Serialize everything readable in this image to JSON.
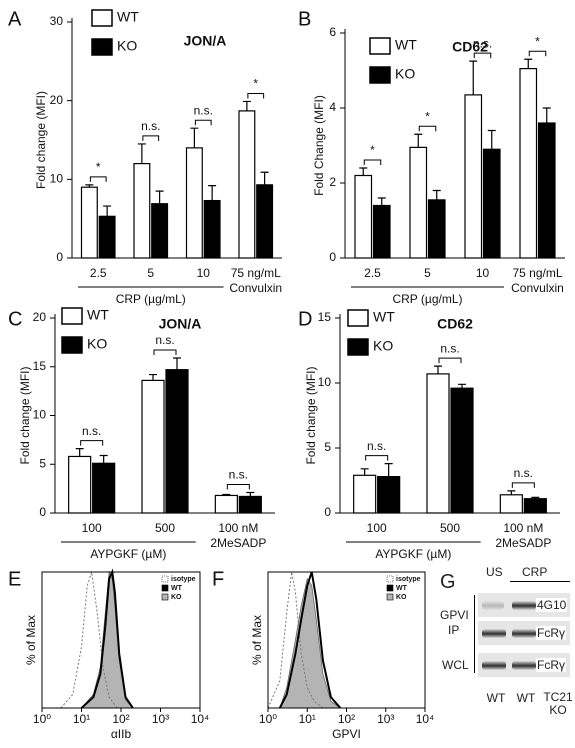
{
  "chart_data": [
    {
      "type": "bar",
      "panel": "A",
      "title": "JON/A",
      "ylabel": "Fold change (MFI)",
      "categories": [
        "2.5",
        "5",
        "10",
        "75 ng/mL"
      ],
      "xlabel": "CRP (µg/mL)",
      "xlabel2": "Convulxin",
      "series": [
        {
          "name": "WT",
          "color": "#ffffff",
          "values": [
            9,
            12,
            14,
            18.7
          ],
          "errors": [
            0.3,
            2.5,
            2.5,
            1.2
          ]
        },
        {
          "name": "KO",
          "color": "#000000",
          "values": [
            5.3,
            6.9,
            7.3,
            9.3
          ],
          "errors": [
            1.3,
            1.6,
            1.9,
            1.6
          ]
        }
      ],
      "annotations": [
        "*",
        "n.s.",
        "n.s.",
        "*"
      ],
      "ylim": [
        0,
        30
      ],
      "yticks": [
        0,
        10,
        20,
        30
      ]
    },
    {
      "type": "bar",
      "panel": "B",
      "title": "CD62",
      "ylabel": "Fold Change (MFI)",
      "categories": [
        "2.5",
        "5",
        "10",
        "75 ng/mL"
      ],
      "xlabel": "CRP (µg/mL)",
      "xlabel2": "Convulxin",
      "series": [
        {
          "name": "WT",
          "color": "#ffffff",
          "values": [
            2.2,
            2.95,
            4.35,
            5.05
          ],
          "errors": [
            0.2,
            0.35,
            0.9,
            0.25
          ]
        },
        {
          "name": "KO",
          "color": "#000000",
          "values": [
            1.4,
            1.55,
            2.9,
            3.6
          ],
          "errors": [
            0.2,
            0.25,
            0.5,
            0.4
          ]
        }
      ],
      "annotations": [
        "*",
        "*",
        "n.s.",
        "*"
      ],
      "ylim": [
        0,
        6
      ],
      "yticks": [
        0,
        2,
        4,
        6
      ]
    },
    {
      "type": "bar",
      "panel": "C",
      "title": "JON/A",
      "ylabel": "Fold change (MFI)",
      "categories": [
        "100",
        "500",
        "100 nM"
      ],
      "xlabel": "AYPGKF (µM)",
      "xlabel2": "2MeSADP",
      "series": [
        {
          "name": "WT",
          "color": "#ffffff",
          "values": [
            5.8,
            13.6,
            1.8
          ],
          "errors": [
            0.8,
            0.6,
            0.1
          ]
        },
        {
          "name": "KO",
          "color": "#000000",
          "values": [
            5.1,
            14.7,
            1.7
          ],
          "errors": [
            0.8,
            1.2,
            0.4
          ]
        }
      ],
      "annotations": [
        "n.s.",
        "n.s.",
        "n.s."
      ],
      "ylim": [
        0,
        20
      ],
      "yticks": [
        0,
        5,
        10,
        15,
        20
      ]
    },
    {
      "type": "bar",
      "panel": "D",
      "title": "CD62",
      "ylabel": "Fold change (MFI)",
      "categories": [
        "100",
        "500",
        "100 nM"
      ],
      "xlabel": "AYPGKF (µM)",
      "xlabel2": "2MeSADP",
      "series": [
        {
          "name": "WT",
          "color": "#ffffff",
          "values": [
            2.9,
            10.7,
            1.4
          ],
          "errors": [
            0.5,
            0.6,
            0.3
          ]
        },
        {
          "name": "KO",
          "color": "#000000",
          "values": [
            2.8,
            9.6,
            1.1
          ],
          "errors": [
            1.0,
            0.3,
            0.1
          ]
        }
      ],
      "annotations": [
        "n.s.",
        "n.s.",
        "n.s."
      ],
      "ylim": [
        0,
        15
      ],
      "yticks": [
        0,
        5,
        10,
        15
      ]
    },
    {
      "type": "histogram-line",
      "panel": "E",
      "ylabel": "% of Max",
      "xlabel": "αIIb",
      "xscale": "log",
      "xlim": [
        1,
        10000
      ],
      "ylim": [
        0,
        100
      ],
      "xticks": [
        {
          "value": 1,
          "label": "10⁰"
        },
        {
          "value": 10,
          "label": "10¹"
        },
        {
          "value": 100,
          "label": "10²"
        },
        {
          "value": 1000,
          "label": "10³"
        },
        {
          "value": 10000,
          "label": "10⁴"
        }
      ],
      "series": [
        {
          "name": "isotype",
          "color": "#777777",
          "dash": true,
          "fill": false,
          "x": [
            3,
            6,
            10,
            14,
            18,
            25,
            35,
            50,
            80
          ],
          "values": [
            0,
            10,
            45,
            90,
            100,
            70,
            30,
            8,
            0
          ]
        },
        {
          "name": "WT",
          "color": "#000000",
          "dash": false,
          "fill": false,
          "x": [
            10,
            20,
            30,
            40,
            50,
            60,
            70,
            90,
            130,
            200
          ],
          "values": [
            0,
            8,
            25,
            60,
            95,
            100,
            85,
            40,
            8,
            0
          ]
        },
        {
          "name": "KO",
          "color": "#b4b4b4",
          "dash": false,
          "fill": true,
          "x": [
            10,
            20,
            30,
            40,
            50,
            60,
            70,
            90,
            130,
            200
          ],
          "values": [
            0,
            10,
            30,
            70,
            100,
            95,
            75,
            35,
            6,
            0
          ]
        }
      ]
    },
    {
      "type": "histogram-line",
      "panel": "F",
      "ylabel": "% of Max",
      "xlabel": "GPVI",
      "xscale": "log",
      "xlim": [
        1,
        10000
      ],
      "ylim": [
        0,
        100
      ],
      "xticks": [
        {
          "value": 1,
          "label": "10⁰"
        },
        {
          "value": 10,
          "label": "10¹"
        },
        {
          "value": 100,
          "label": "10²"
        },
        {
          "value": 1000,
          "label": "10³"
        },
        {
          "value": 10000,
          "label": "10⁴"
        }
      ],
      "series": [
        {
          "name": "isotype",
          "color": "#777777",
          "dash": true,
          "fill": false,
          "x": [
            1,
            2,
            3,
            4,
            5,
            7,
            10,
            15,
            25
          ],
          "values": [
            0,
            20,
            70,
            100,
            85,
            40,
            15,
            5,
            0
          ]
        },
        {
          "name": "WT",
          "color": "#000000",
          "dash": false,
          "fill": false,
          "x": [
            2,
            3,
            5,
            7,
            10,
            13,
            17,
            25,
            40,
            70
          ],
          "values": [
            0,
            10,
            40,
            65,
            90,
            100,
            80,
            35,
            8,
            0
          ]
        },
        {
          "name": "KO",
          "color": "#b4b4b4",
          "dash": false,
          "fill": true,
          "x": [
            2,
            3,
            5,
            7,
            10,
            13,
            17,
            25,
            40,
            70
          ],
          "values": [
            0,
            15,
            50,
            75,
            95,
            90,
            65,
            25,
            5,
            0
          ]
        }
      ]
    }
  ],
  "blot": {
    "panel": "G",
    "top_labels": [
      "US",
      "CRP"
    ],
    "group": [
      "GPVI",
      "IP"
    ],
    "rows": [
      "4G10",
      "FcRγ",
      "FcRγ"
    ],
    "row_group": "WCL",
    "lanes": [
      "WT",
      "WT",
      "TC21 KO"
    ]
  }
}
